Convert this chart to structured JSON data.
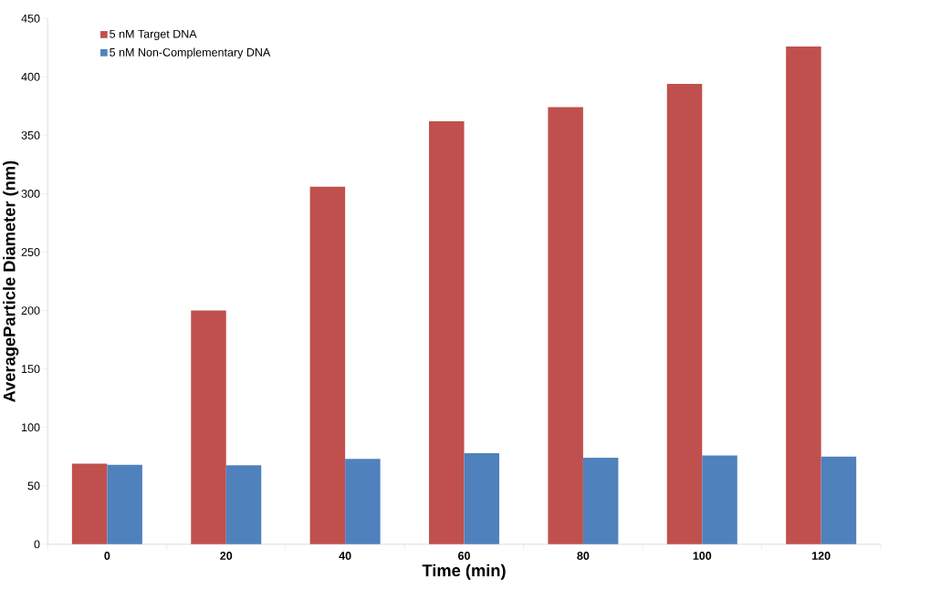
{
  "chart_data": {
    "type": "bar",
    "xlabel": "Time (min)",
    "ylabel": "AverageParticle Diameter (nm)",
    "categories": [
      "0",
      "20",
      "40",
      "60",
      "80",
      "100",
      "120"
    ],
    "series": [
      {
        "name": "5 nM Target DNA",
        "color": "#c0504d",
        "values": [
          69,
          200,
          306,
          362,
          374,
          394,
          426
        ]
      },
      {
        "name": "5 nM Non-Complementary DNA",
        "color": "#4f81bd",
        "values": [
          68,
          67.5,
          73,
          78,
          74,
          76,
          75
        ]
      }
    ],
    "ylim": [
      0,
      450
    ],
    "yticks": [
      0,
      50,
      100,
      150,
      200,
      250,
      300,
      350,
      400,
      450
    ],
    "grid": false,
    "legend": "top left"
  }
}
